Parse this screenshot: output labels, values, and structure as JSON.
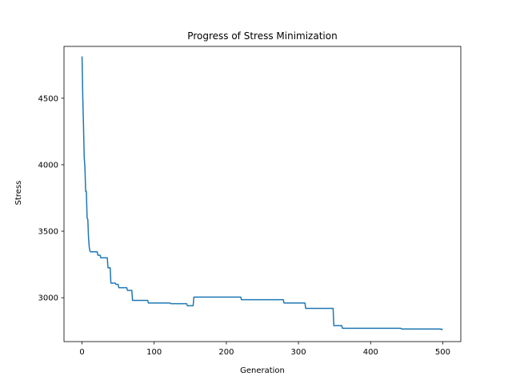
{
  "chart_data": {
    "type": "line",
    "title": "Progress of Stress Minimization",
    "xlabel": "Generation",
    "ylabel": "Stress",
    "xlim": [
      -25,
      525
    ],
    "ylim": [
      2670,
      4890
    ],
    "xticks": [
      0,
      100,
      200,
      300,
      400,
      500
    ],
    "yticks": [
      3000,
      3500,
      4000,
      4500
    ],
    "grid": false,
    "legend": "none",
    "series": [
      {
        "color": "#1f77b4",
        "points": [
          [
            0,
            4815
          ],
          [
            1,
            4510
          ],
          [
            2,
            4300
          ],
          [
            3,
            4060
          ],
          [
            4,
            3980
          ],
          [
            5,
            3800
          ],
          [
            6,
            3800
          ],
          [
            7,
            3600
          ],
          [
            8,
            3590
          ],
          [
            9,
            3450
          ],
          [
            10,
            3380
          ],
          [
            11,
            3350
          ],
          [
            12,
            3345
          ],
          [
            21,
            3345
          ],
          [
            22,
            3320
          ],
          [
            25,
            3320
          ],
          [
            26,
            3300
          ],
          [
            35,
            3300
          ],
          [
            36,
            3225
          ],
          [
            39,
            3225
          ],
          [
            40,
            3110
          ],
          [
            46,
            3110
          ],
          [
            47,
            3100
          ],
          [
            50,
            3100
          ],
          [
            51,
            3075
          ],
          [
            62,
            3075
          ],
          [
            63,
            3055
          ],
          [
            69,
            3055
          ],
          [
            70,
            2980
          ],
          [
            91,
            2980
          ],
          [
            92,
            2960
          ],
          [
            122,
            2960
          ],
          [
            123,
            2955
          ],
          [
            145,
            2955
          ],
          [
            146,
            2940
          ],
          [
            154,
            2940
          ],
          [
            155,
            3005
          ],
          [
            220,
            3005
          ],
          [
            221,
            2985
          ],
          [
            279,
            2985
          ],
          [
            280,
            2960
          ],
          [
            309,
            2960
          ],
          [
            310,
            2920
          ],
          [
            348,
            2920
          ],
          [
            349,
            2790
          ],
          [
            360,
            2790
          ],
          [
            361,
            2770
          ],
          [
            442,
            2770
          ],
          [
            443,
            2765
          ],
          [
            497,
            2765
          ],
          [
            498,
            2760
          ],
          [
            500,
            2765
          ]
        ]
      }
    ]
  }
}
